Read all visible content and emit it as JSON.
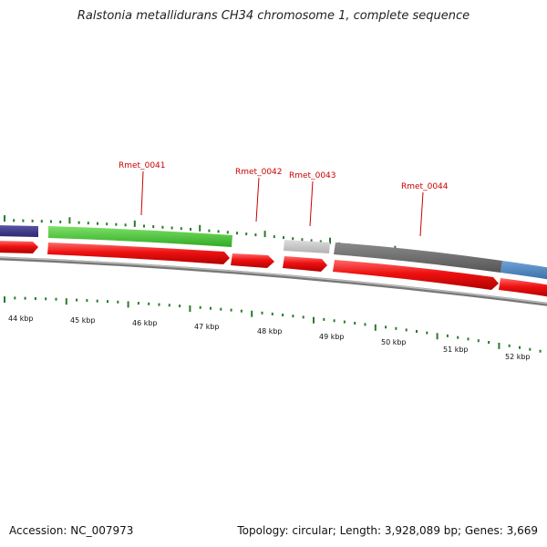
{
  "title": "Ralstonia metallidurans CH34 chromosome 1, complete sequence",
  "footer": {
    "accession": "Accession: NC_007973",
    "summary": "Topology: circular; Length: 3,928,089 bp; Genes: 3,669"
  },
  "scale_labels": [
    "44 kbp",
    "45 kbp",
    "46 kbp",
    "47 kbp",
    "48 kbp",
    "49 kbp",
    "50 kbp",
    "51 kbp",
    "52 kbp"
  ],
  "gene_labels": [
    "Rmet_0041",
    "Rmet_0042",
    "Rmet_0043",
    "Rmet_0044"
  ],
  "colors": {
    "cds_red": "#ee1111",
    "purple_feature": "#3f3a85",
    "green_feature": "#44cc33",
    "light_gray_feature": "#c8c8c8",
    "dark_gray_feature": "#666666",
    "blue_feature": "#4f86bf",
    "tick_green": "#2a7a2a",
    "label_red": "#cc0000"
  }
}
